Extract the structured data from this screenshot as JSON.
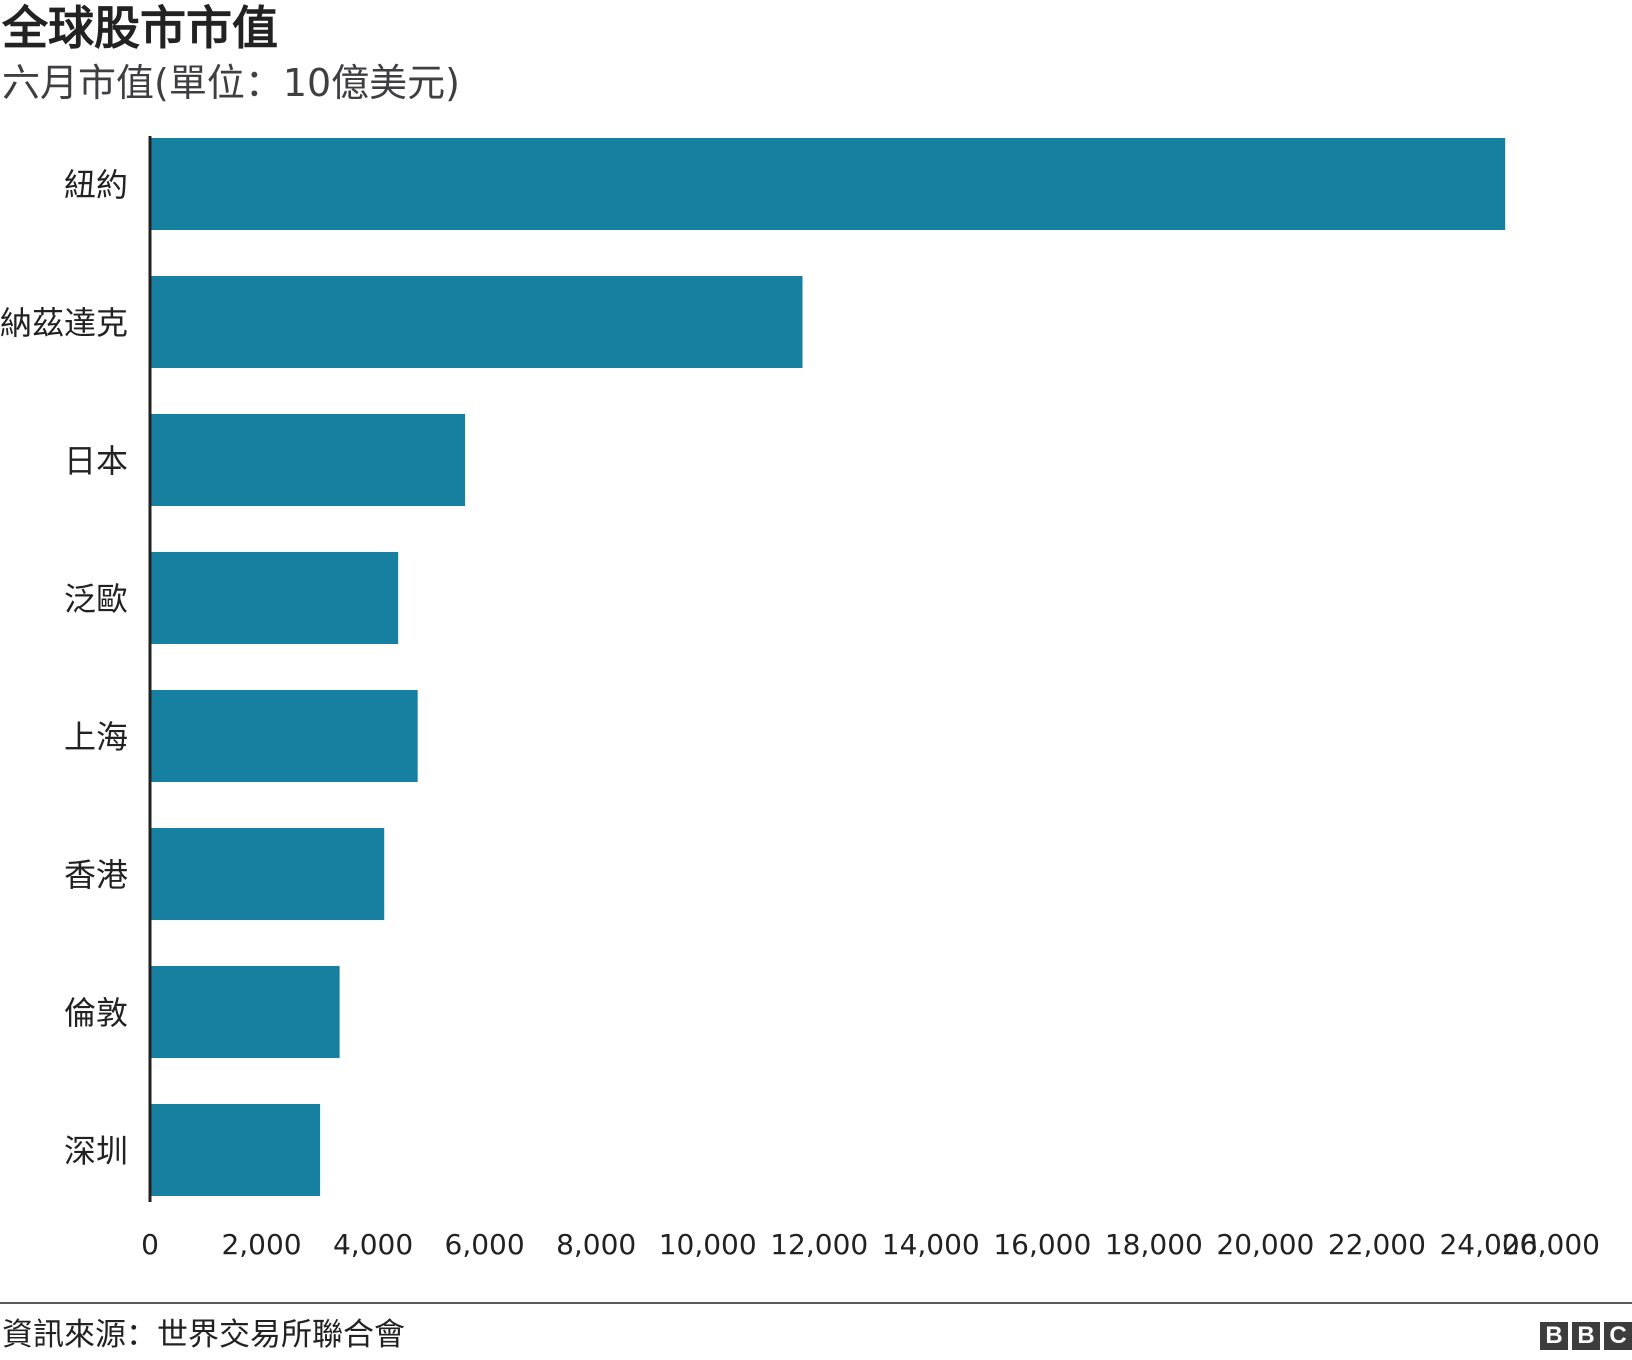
{
  "header": {
    "title": "全球股市市值",
    "subtitle": "六月市值(單位：10億美元)"
  },
  "footer": {
    "source": "資訊來源：世界交易所聯合會",
    "logo_letters": [
      "B",
      "B",
      "C"
    ]
  },
  "colors": {
    "bar": "#1780a1",
    "axis": "#222222",
    "text": "#222222"
  },
  "chart_data": {
    "type": "bar",
    "orientation": "horizontal",
    "title": "全球股市市值",
    "subtitle": "六月市值(單位：10億美元)",
    "categories": [
      "紐約",
      "納茲達克",
      "日本",
      "泛歐",
      "上海",
      "香港",
      "倫敦",
      "深圳"
    ],
    "values": [
      24300,
      11700,
      5650,
      4450,
      4800,
      4200,
      3400,
      3050
    ],
    "xlim": [
      0,
      26000
    ],
    "xticks": [
      0,
      2000,
      4000,
      6000,
      8000,
      10000,
      12000,
      14000,
      16000,
      18000,
      20000,
      22000,
      24000,
      26000
    ],
    "xtick_labels": [
      "0",
      "2,000",
      "4,000",
      "6,000",
      "8,000",
      "10,000",
      "12,000",
      "14,000",
      "16,000",
      "18,000",
      "20,000",
      "22,000",
      "24,000",
      "26,000"
    ],
    "grid": false,
    "legend": "none"
  }
}
